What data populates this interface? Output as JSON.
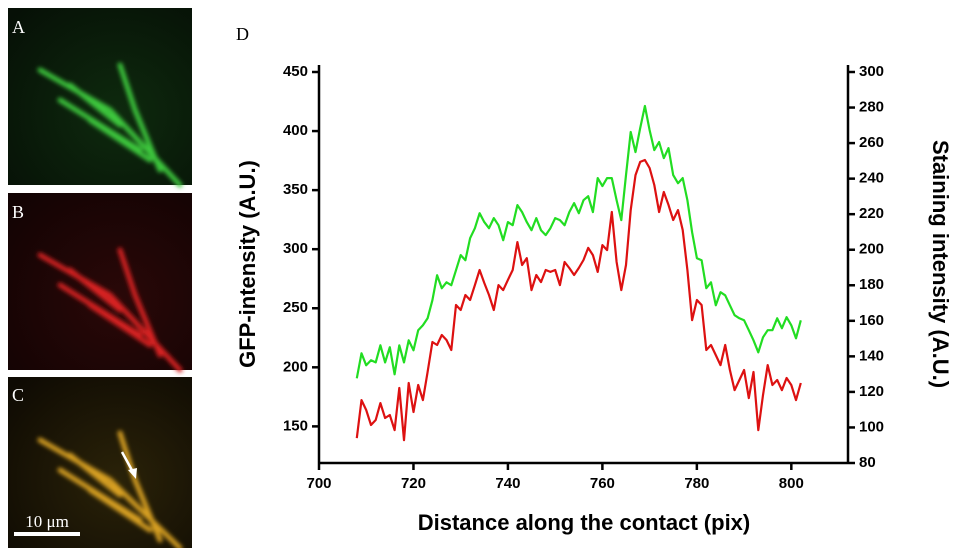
{
  "panels": [
    {
      "label": "A"
    },
    {
      "label": "B"
    },
    {
      "label": "C"
    }
  ],
  "scale_bar": "10 μm",
  "chart_data": {
    "type": "line",
    "label": "D",
    "x_label": "Distance along the contact (pix)",
    "y_label": "GFP-intensity (A.U.)",
    "y2_label": "Staining intensity (A.U.)",
    "xlim": [
      700,
      812
    ],
    "xticks": [
      700,
      720,
      740,
      760,
      780,
      800
    ],
    "ylim": [
      119,
      450
    ],
    "yticks": [
      150,
      200,
      250,
      300,
      350,
      400,
      450
    ],
    "y2lim": [
      80,
      300
    ],
    "y2ticks": [
      80,
      100,
      120,
      140,
      160,
      180,
      200,
      220,
      240,
      260,
      280,
      300
    ],
    "x": [
      708,
      709,
      710,
      711,
      712,
      713,
      714,
      715,
      716,
      717,
      718,
      719,
      720,
      721,
      722,
      723,
      724,
      725,
      726,
      727,
      728,
      729,
      730,
      731,
      732,
      733,
      734,
      735,
      736,
      737,
      738,
      739,
      740,
      741,
      742,
      743,
      744,
      745,
      746,
      747,
      748,
      749,
      750,
      751,
      752,
      753,
      754,
      755,
      756,
      757,
      758,
      759,
      760,
      761,
      762,
      763,
      764,
      765,
      766,
      767,
      768,
      769,
      770,
      771,
      772,
      773,
      774,
      775,
      776,
      777,
      778,
      779,
      780,
      781,
      782,
      783,
      784,
      785,
      786,
      787,
      788,
      789,
      790,
      791,
      792,
      793,
      794,
      795,
      796,
      797,
      798,
      799,
      800,
      801,
      802
    ],
    "series": [
      {
        "color": "#22dd22",
        "values": [
          190.7,
          211.9,
          201.7,
          206,
          204.2,
          218.6,
          204.2,
          217,
          194.1,
          218.6,
          204.2,
          222.9,
          214.4,
          231.4,
          235.6,
          241.5,
          256.8,
          278,
          267,
          272,
          269.5,
          282.2,
          295,
          290.7,
          309.3,
          317.8,
          330.5,
          322.9,
          317.8,
          326.3,
          320.3,
          307.6,
          322.9,
          320.3,
          337.3,
          331.4,
          322.9,
          316.1,
          326.3,
          316.1,
          311.9,
          317.8,
          326.3,
          324.6,
          320.3,
          331.4,
          339,
          330.5,
          341.5,
          344.9,
          331.4,
          360.2,
          353.4,
          360.2,
          360.2,
          341.5,
          324.6,
          362.7,
          399.2,
          382.2,
          402.5,
          421.2,
          400.8,
          383.9,
          390.7,
          377.1,
          385.6,
          362.7,
          355.9,
          360.2,
          341.5,
          314.4,
          292.4,
          290.7,
          267,
          272,
          252.5,
          263.6,
          261,
          252.5,
          244.1,
          241.5,
          239.8,
          231.4,
          222.9,
          212.7,
          225.4,
          231.4,
          231.4,
          241.5,
          233.1,
          242.4,
          235.6,
          224.6,
          239.8
        ]
      },
      {
        "color": "#dd1111",
        "axis": "y2",
        "values": [
          94,
          115.4,
          109.8,
          101.4,
          104.2,
          113.7,
          105.3,
          107,
          98.5,
          122.2,
          92.9,
          125,
          108.7,
          123.9,
          115.4,
          131.2,
          148.1,
          146.4,
          152,
          149.2,
          143.6,
          168.9,
          166.1,
          174.5,
          171.7,
          180.1,
          188.6,
          181.3,
          174.5,
          166.1,
          180.1,
          177.3,
          183,
          188.6,
          204.3,
          191.4,
          195.3,
          177.3,
          185.8,
          181.8,
          188.6,
          187.5,
          188.6,
          180.1,
          193.1,
          189.7,
          185.8,
          189.7,
          194.2,
          201,
          197,
          187.5,
          202.6,
          199.8,
          221.2,
          193.1,
          177.3,
          191.4,
          222.3,
          242,
          249.4,
          250.5,
          246,
          236.4,
          221.2,
          232.5,
          225.2,
          216.7,
          222.3,
          211.1,
          188.6,
          160.4,
          171.7,
          168.9,
          143.6,
          146.4,
          140.7,
          135.1,
          146.4,
          132.3,
          121,
          126.7,
          132.3,
          116.5,
          131.2,
          98.5,
          118.2,
          135.1,
          123.9,
          126.7,
          121,
          127.8,
          123.9,
          115.4,
          125
        ]
      }
    ]
  }
}
